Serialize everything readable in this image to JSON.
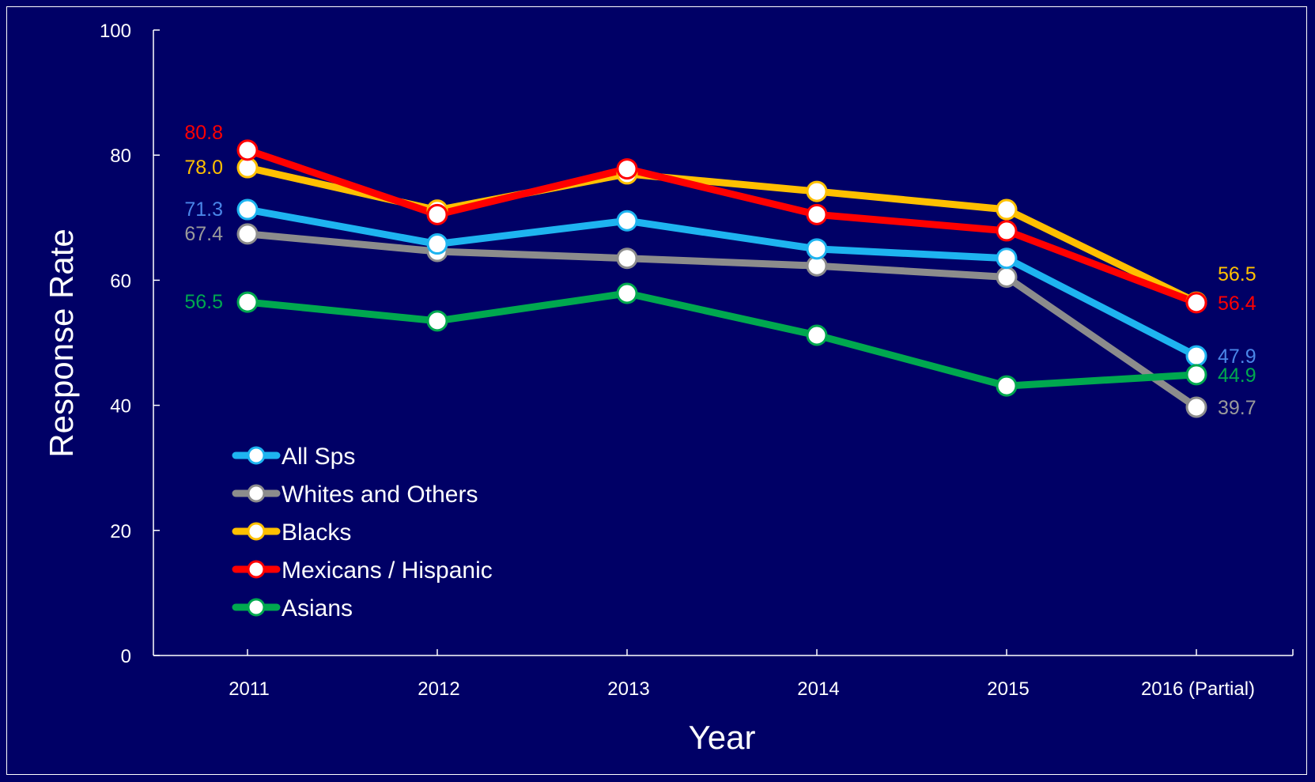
{
  "chart_data": {
    "type": "line",
    "title": "",
    "xlabel": "Year",
    "ylabel": "Response Rate",
    "ylim": [
      0,
      100
    ],
    "yticks": [
      0,
      20,
      40,
      60,
      80,
      100
    ],
    "ytick_labels": [
      "0",
      "20",
      "40",
      "60",
      "80",
      "100"
    ],
    "categories": [
      "2011",
      "2012",
      "2013",
      "2014",
      "2015",
      "2016 (Partial)"
    ],
    "grid": false,
    "legend_placement": "lower-left",
    "background_color": "#000066",
    "series": [
      {
        "name": "All Sps",
        "color": "#1EB4F0",
        "values": [
          71.3,
          65.8,
          69.5,
          65.0,
          63.5,
          47.9
        ],
        "labels": [
          {
            "index": 0,
            "text": "71.3",
            "color": "#4A86E8",
            "side": "left"
          },
          {
            "index": 5,
            "text": "47.9",
            "color": "#4A86E8",
            "side": "right"
          }
        ]
      },
      {
        "name": "Whites and Others",
        "color": "#8C8C8C",
        "values": [
          67.4,
          64.6,
          63.5,
          62.3,
          60.5,
          39.7
        ],
        "labels": [
          {
            "index": 0,
            "text": "67.4",
            "color": "#9A9A9A",
            "side": "left"
          },
          {
            "index": 5,
            "text": "39.7",
            "color": "#9A9A9A",
            "side": "right"
          }
        ]
      },
      {
        "name": "Blacks",
        "color": "#FFC000",
        "values": [
          78.0,
          71.2,
          77.0,
          74.2,
          71.3,
          56.5
        ],
        "labels": [
          {
            "index": 0,
            "text": "78.0",
            "color": "#FFC000",
            "side": "left"
          },
          {
            "index": 5,
            "text": "56.5",
            "color": "#FFC000",
            "side": "right-up"
          }
        ]
      },
      {
        "name": "Mexicans / Hispanic",
        "color": "#FF0000",
        "values": [
          80.8,
          70.5,
          77.8,
          70.5,
          67.9,
          56.4
        ],
        "labels": [
          {
            "index": 0,
            "text": "80.8",
            "color": "#FF0000",
            "side": "left-up"
          },
          {
            "index": 5,
            "text": "56.4",
            "color": "#FF0000",
            "side": "right"
          }
        ]
      },
      {
        "name": "Asians",
        "color": "#00A84F",
        "values": [
          56.5,
          53.5,
          57.9,
          51.2,
          43.1,
          44.9
        ],
        "labels": [
          {
            "index": 0,
            "text": "56.5",
            "color": "#00A84F",
            "side": "left"
          },
          {
            "index": 5,
            "text": "44.9",
            "color": "#00A84F",
            "side": "right"
          }
        ]
      }
    ]
  }
}
